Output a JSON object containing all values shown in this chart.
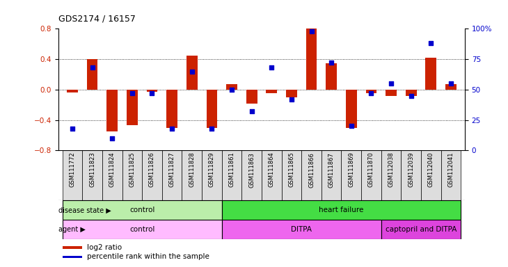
{
  "title": "GDS2174 / 16157",
  "samples": [
    "GSM111772",
    "GSM111823",
    "GSM111824",
    "GSM111825",
    "GSM111826",
    "GSM111827",
    "GSM111828",
    "GSM111829",
    "GSM111861",
    "GSM111863",
    "GSM111864",
    "GSM111865",
    "GSM111866",
    "GSM111867",
    "GSM111869",
    "GSM111870",
    "GSM112038",
    "GSM112039",
    "GSM112040",
    "GSM112041"
  ],
  "log2_ratio": [
    -0.04,
    0.4,
    -0.55,
    -0.47,
    -0.03,
    -0.5,
    0.45,
    -0.5,
    0.07,
    -0.18,
    -0.05,
    -0.1,
    0.8,
    0.35,
    -0.5,
    -0.05,
    -0.08,
    -0.08,
    0.42,
    0.07
  ],
  "percentile": [
    18,
    68,
    10,
    47,
    47,
    18,
    65,
    18,
    50,
    32,
    68,
    42,
    98,
    72,
    20,
    47,
    55,
    45,
    88,
    55
  ],
  "ylim": [
    -0.8,
    0.8
  ],
  "yticks_left": [
    -0.8,
    -0.4,
    0.0,
    0.4,
    0.8
  ],
  "yticks_right": [
    0,
    25,
    50,
    75,
    100
  ],
  "bar_color": "#CC2200",
  "dot_color": "#0000CC",
  "disease_state": [
    {
      "label": "control",
      "start": 0,
      "end": 8,
      "color": "#AAEEA A"
    },
    {
      "label": "heart failure",
      "start": 8,
      "end": 20,
      "color": "#44DD44"
    }
  ],
  "agent": [
    {
      "label": "control",
      "start": 0,
      "end": 8,
      "color": "#FFBBFF"
    },
    {
      "label": "DITPA",
      "start": 8,
      "end": 16,
      "color": "#EE66EE"
    },
    {
      "label": "captopril and DITPA",
      "start": 16,
      "end": 20,
      "color": "#DD44DD"
    }
  ],
  "legend_red_label": "log2 ratio",
  "legend_blue_label": "percentile rank within the sample",
  "bar_color_legend": "#CC2200",
  "dot_color_legend": "#0000CC",
  "background_color": "#FFFFFF",
  "title_fontsize": 9,
  "bar_width": 0.55,
  "ds_light_green": "#BBEEAA",
  "ds_dark_green": "#44DD44",
  "ag_light_purple": "#FFBBFF",
  "ag_mid_purple": "#EE66EE",
  "ag_dark_purple": "#DD44DD"
}
